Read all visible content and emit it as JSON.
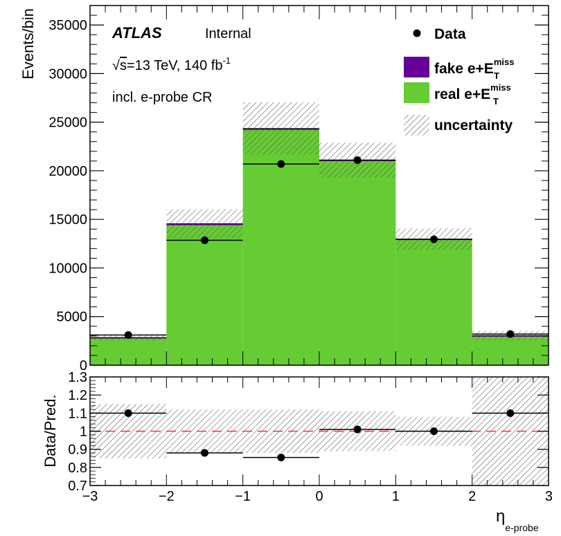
{
  "chart_data": [
    {
      "type": "bar",
      "stacked": true,
      "bin_edges": [
        -3,
        -2,
        -1,
        0,
        1,
        2,
        3
      ],
      "series": [
        {
          "name": "real e+E_T^miss",
          "values": [
            2800,
            14400,
            24200,
            21000,
            12900,
            3000
          ],
          "color": "#66cc33"
        },
        {
          "name": "fake e+E_T^miss",
          "values": [
            50,
            150,
            150,
            100,
            80,
            40
          ],
          "color": "#660099"
        }
      ],
      "data_points": [
        3100,
        12850,
        20700,
        21100,
        12950,
        3200
      ],
      "uncertainty": [
        300,
        1500,
        2700,
        1800,
        1100,
        500
      ],
      "ylabel": "Events/bin",
      "ylim": [
        0,
        37000
      ],
      "yticks": [
        "0",
        "5000",
        "10000",
        "15000",
        "20000",
        "25000",
        "30000",
        "35000"
      ],
      "legend": {
        "placement": "top-right",
        "data": "Data",
        "fake": {
          "main": "fake e+E",
          "sub": "T",
          "sup": "miss"
        },
        "real": {
          "main": "real e+E",
          "sub": "T",
          "sup": "miss"
        },
        "unc": "uncertainty"
      },
      "annotations": {
        "atlas": "ATLAS",
        "internal": "Internal",
        "energy": {
          "sqrt": "√",
          "s": "s",
          "main": "=13 TeV, 140 fb",
          "sup": "-1"
        },
        "region": "incl. e-probe CR"
      }
    },
    {
      "type": "scatter",
      "bin_edges": [
        -3,
        -2,
        -1,
        0,
        1,
        2,
        3
      ],
      "ratio": [
        1.1,
        0.88,
        0.855,
        1.01,
        1.0,
        1.1
      ],
      "ratio_band": [
        0.15,
        0.12,
        0.12,
        0.11,
        0.08,
        0.3
      ],
      "reference_line": 1,
      "ylabel": "Data/Pred.",
      "ylim": [
        0.7,
        1.3
      ],
      "yticks": [
        "0.7",
        "0.8",
        "0.9",
        "1",
        "1.1",
        "1.2",
        "1.3"
      ],
      "xticks": [
        "−3",
        "−2",
        "−1",
        "0",
        "1",
        "2",
        "3"
      ],
      "xlabel": {
        "main": "η",
        "sub": "e-probe"
      }
    }
  ],
  "colors": {
    "real": "#66cc33",
    "fake": "#660099",
    "reference_line": "#ff3333",
    "hatch": "#555555"
  }
}
